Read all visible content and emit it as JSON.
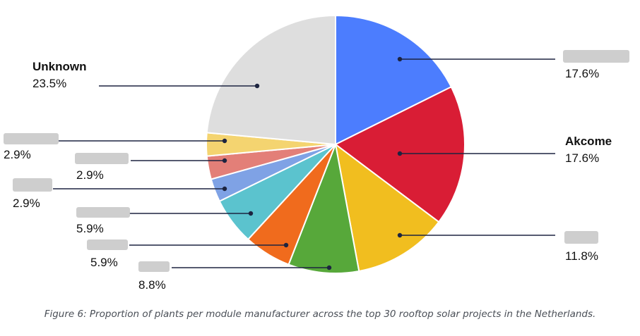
{
  "chart_data": {
    "type": "pie",
    "title": "",
    "caption": "Figure 6: Proportion of plants per module manufacturer across the top 30 rooftop solar projects in the Netherlands.",
    "start_angle_deg": 0,
    "direction": "clockwise",
    "slices": [
      {
        "label": "",
        "value": 17.6,
        "value_label": "17.6%",
        "color": "#4C7DFE",
        "label_hidden": true
      },
      {
        "label": "Akcome",
        "value": 17.6,
        "value_label": "17.6%",
        "color": "#D91D35",
        "label_hidden": false
      },
      {
        "label": "",
        "value": 11.8,
        "value_label": "11.8%",
        "color": "#F1BE1F",
        "label_hidden": true
      },
      {
        "label": "",
        "value": 8.8,
        "value_label": "8.8%",
        "color": "#57A83A",
        "label_hidden": true
      },
      {
        "label": "",
        "value": 5.9,
        "value_label": "5.9%",
        "color": "#F06B1D",
        "label_hidden": true
      },
      {
        "label": "",
        "value": 5.9,
        "value_label": "5.9%",
        "color": "#5BC3CE",
        "label_hidden": true
      },
      {
        "label": "",
        "value": 2.9,
        "value_label": "2.9%",
        "color": "#7FA2E5",
        "label_hidden": true
      },
      {
        "label": "",
        "value": 2.9,
        "value_label": "2.9%",
        "color": "#E37F78",
        "label_hidden": true
      },
      {
        "label": "",
        "value": 2.9,
        "value_label": "2.9%",
        "color": "#F4D470",
        "label_hidden": true
      },
      {
        "label": "Unknown",
        "value": 23.5,
        "value_label": "23.5%",
        "color": "#DEDEDE",
        "label_hidden": false
      }
    ],
    "leader_color": "#1d2440",
    "redaction_color": "#c9c9c9"
  }
}
